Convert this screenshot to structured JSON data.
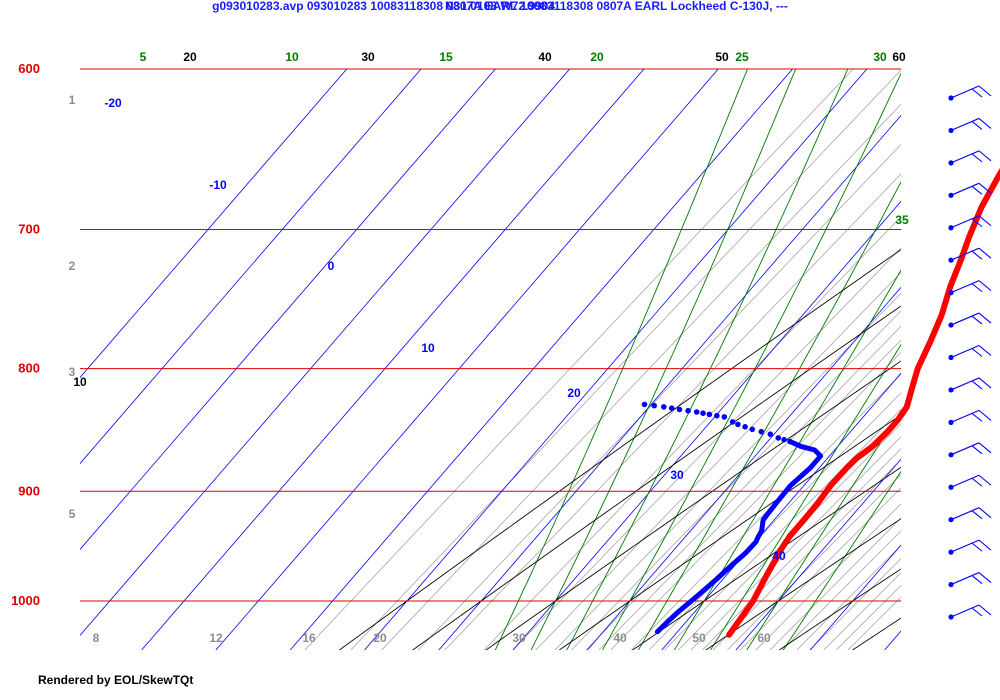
{
  "chart_data": {
    "type": "skew-t",
    "title": "g093010283.avp 093010283 10083118308 0807A EARL 10083118308 0807A EARL Lockheed C-130J, ---",
    "subtitle": "N31.0108 W72.9904",
    "footer": "Rendered by EOL/SkewTQt",
    "pressure_levels": [
      600,
      700,
      800,
      900,
      1000
    ],
    "pressure_range": [
      1040,
      600
    ],
    "left_height_labels": [
      "1",
      "2",
      "3",
      "5"
    ],
    "mixing_ratio_bottom_labels": [
      "8",
      "12",
      "16",
      "20",
      "30",
      "40",
      "50",
      "60"
    ],
    "isotherm_labels": [
      "-20",
      "-10",
      "0",
      "10",
      "20",
      "30",
      "40"
    ],
    "dry_adiabat_labels": [
      "10",
      "20",
      "30",
      "40",
      "50",
      "60"
    ],
    "moist_adiabat_labels": [
      "5",
      "10",
      "15",
      "20",
      "25",
      "30",
      "35"
    ],
    "temperature_profile": [
      [
        1033,
        27.3
      ],
      [
        1000,
        26.6
      ],
      [
        975,
        25.4
      ],
      [
        950,
        24.3
      ],
      [
        940,
        24.0
      ],
      [
        925,
        24.0
      ],
      [
        910,
        23.9
      ],
      [
        895,
        23.6
      ],
      [
        880,
        23.7
      ],
      [
        872,
        23.9
      ],
      [
        862,
        24.7
      ],
      [
        850,
        25.0
      ],
      [
        840,
        25.0
      ],
      [
        830,
        24.7
      ],
      [
        816,
        23.3
      ],
      [
        800,
        21.7
      ],
      [
        780,
        20.3
      ],
      [
        760,
        18.7
      ],
      [
        740,
        16.6
      ],
      [
        720,
        14.8
      ],
      [
        705,
        13.3
      ],
      [
        685,
        11.5
      ],
      [
        665,
        10.2
      ],
      [
        648,
        9.2
      ],
      [
        630,
        7.5
      ],
      [
        615,
        6.3
      ],
      [
        600,
        4.4
      ]
    ],
    "dewpoint_profile": [
      [
        1030,
        17.3
      ],
      [
        1020,
        17.5
      ],
      [
        1010,
        17.8
      ],
      [
        995,
        18.5
      ],
      [
        980,
        19.1
      ],
      [
        965,
        19.6
      ],
      [
        955,
        20.0
      ],
      [
        945,
        20.1
      ],
      [
        940,
        19.8
      ],
      [
        935,
        19.6
      ],
      [
        925,
        18.5
      ],
      [
        910,
        18.3
      ],
      [
        895,
        18.2
      ],
      [
        880,
        18.8
      ],
      [
        870,
        18.8
      ],
      [
        865,
        17.3
      ],
      [
        862,
        15.0
      ],
      [
        858,
        13.0
      ],
      [
        855,
        11.0
      ],
      [
        852,
        9.5
      ],
      [
        848,
        6.5
      ],
      [
        844,
        4.0
      ],
      [
        842,
        3.0
      ],
      [
        838,
        1.3
      ],
      [
        836,
        -1.0
      ],
      [
        834,
        -3.0
      ],
      [
        832,
        -5.6
      ],
      [
        830,
        -8.0
      ],
      [
        828,
        -10.9
      ]
    ],
    "wind_barbs": {
      "count": 17,
      "symbol": "barb"
    },
    "colors": {
      "isobar": "#e00000",
      "temperature": "#ff0000",
      "dewpoint": "#0000ff",
      "isotherm": "#0000ff",
      "dry_adiabat": "#000000",
      "moist_adiabat": "#007800",
      "mixing_ratio": "#9c9c9c",
      "title": "#1a1aff",
      "pressure_label": "#e00000",
      "height_label": "#8c8c8c"
    }
  }
}
